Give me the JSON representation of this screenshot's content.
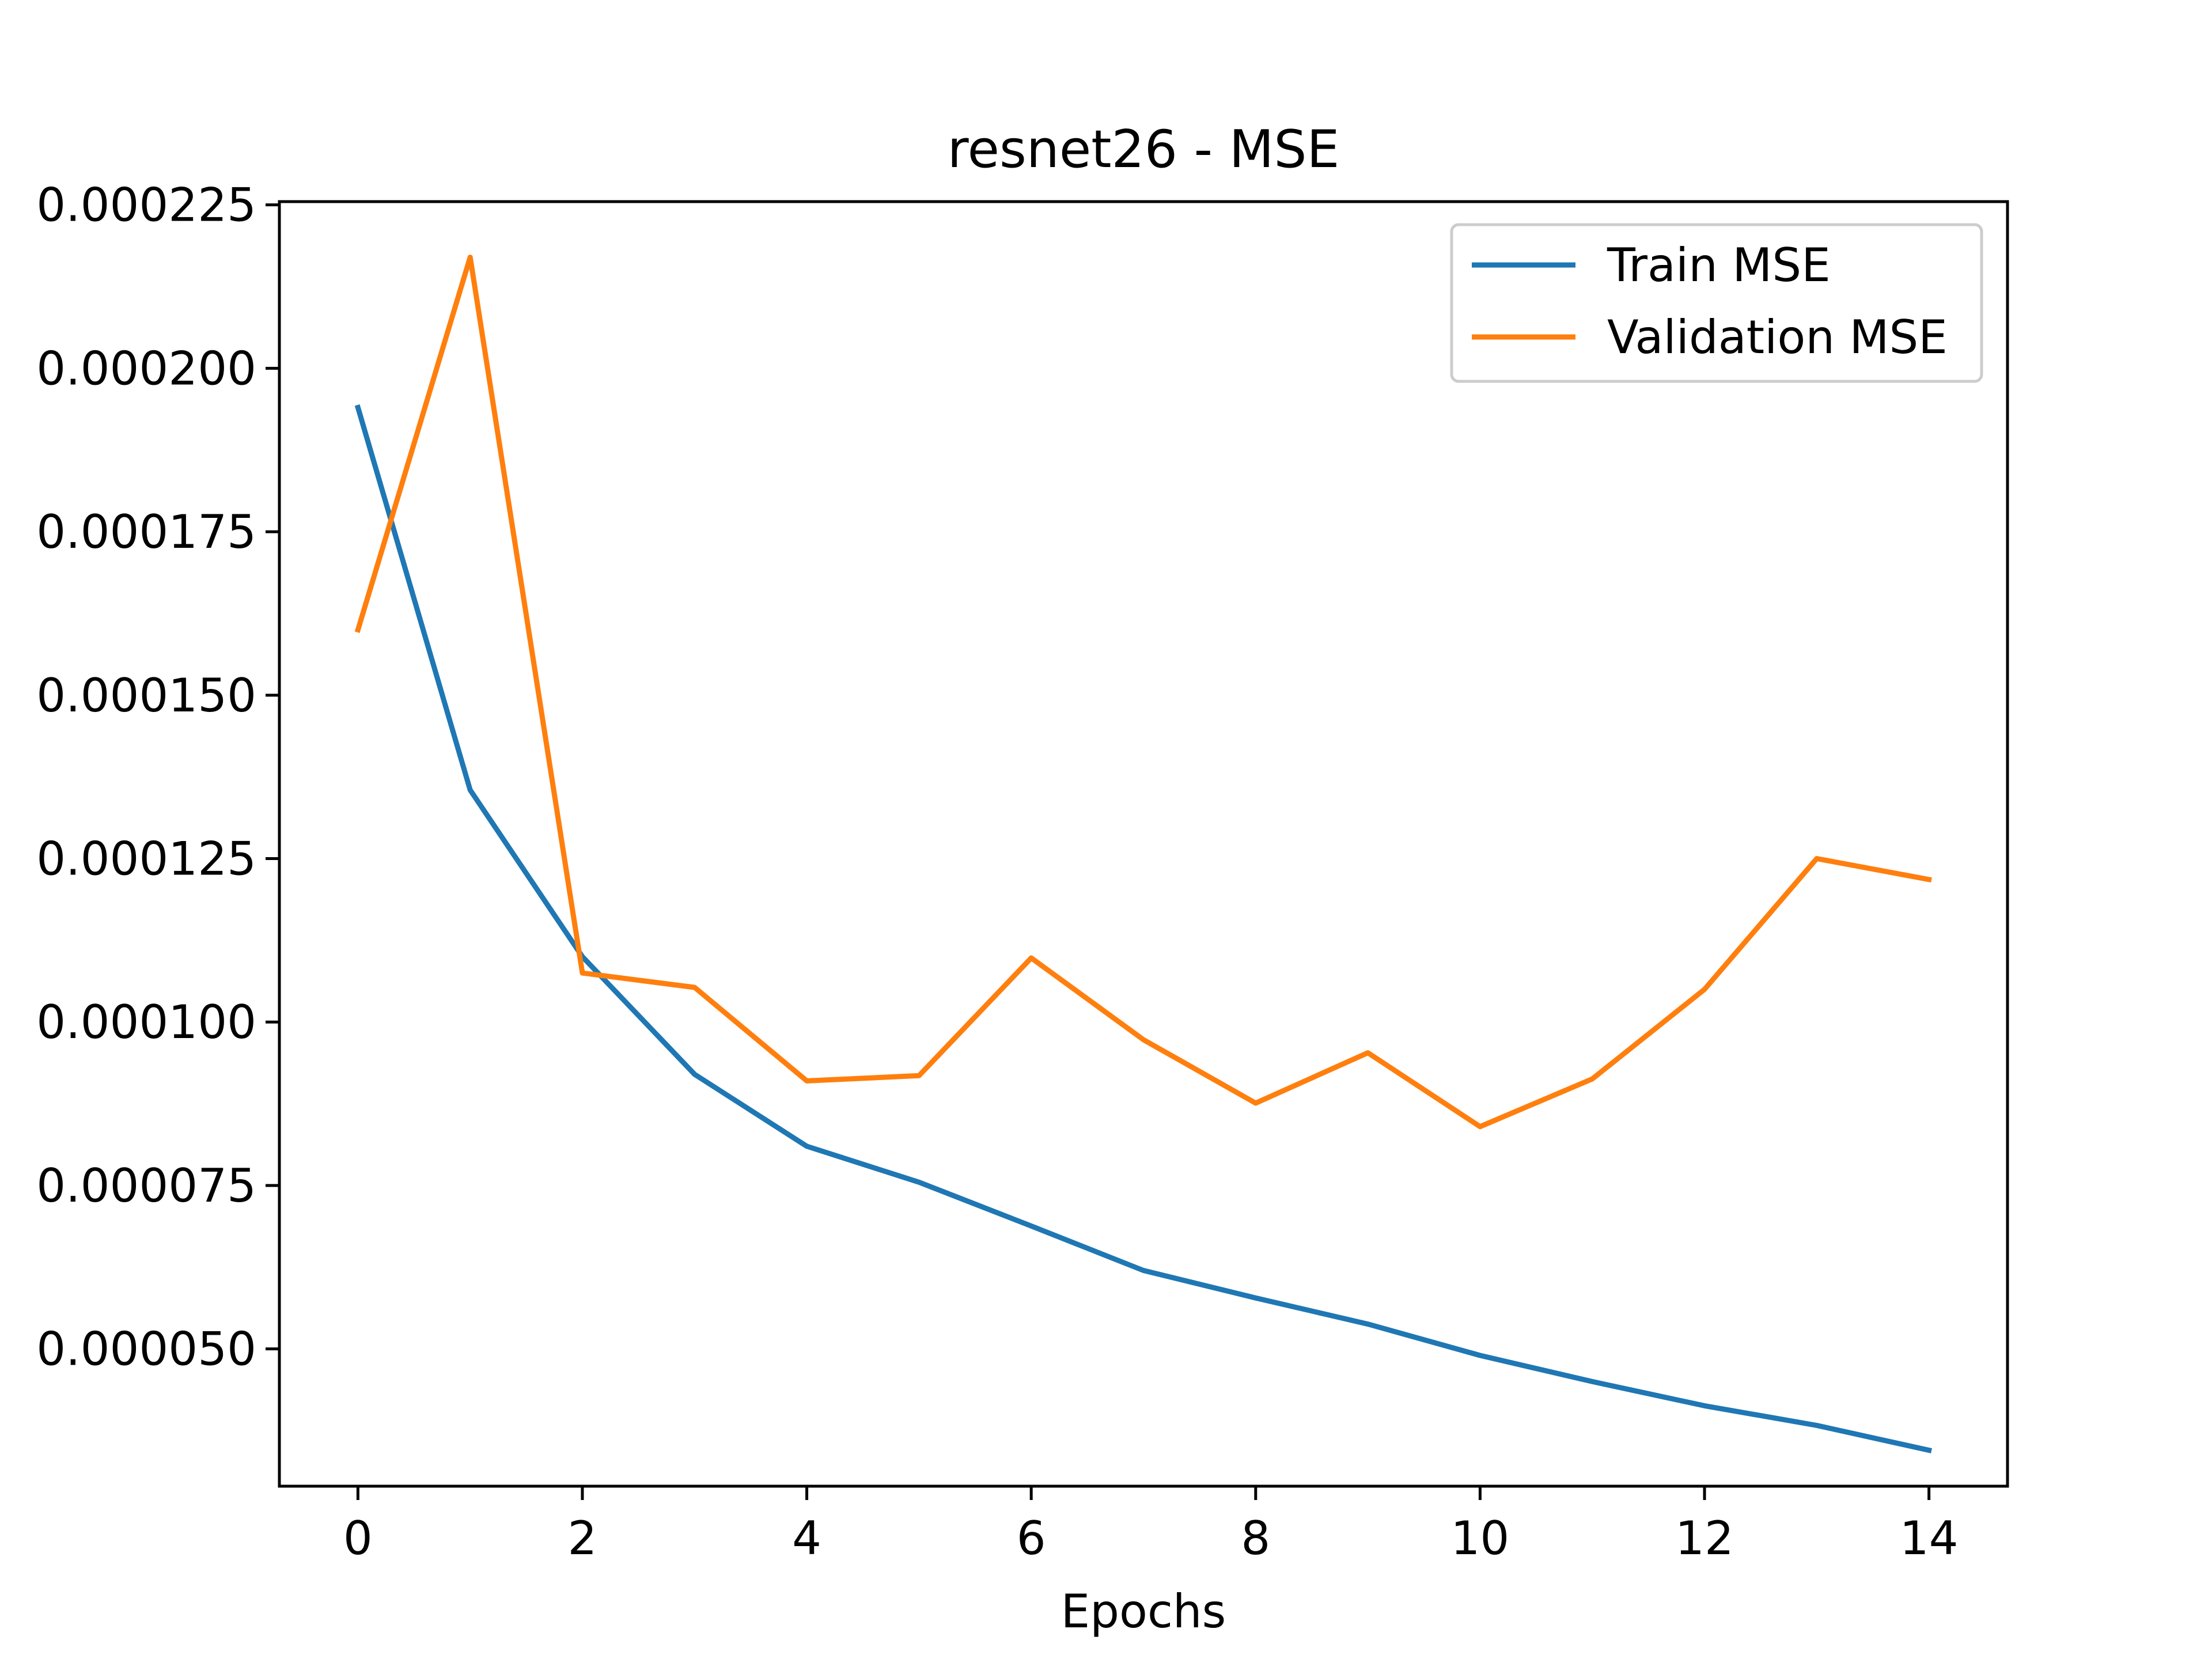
{
  "chart_data": {
    "type": "line",
    "title": "resnet26 - MSE",
    "xlabel": "Epochs",
    "ylabel": "",
    "xlim": [
      -0.7,
      14.7
    ],
    "ylim": [
      2.9e-05,
      0.0002255
    ],
    "x_ticks": [
      0,
      2,
      4,
      6,
      8,
      10,
      12,
      14
    ],
    "x_tick_labels": [
      "0",
      "2",
      "4",
      "6",
      "8",
      "10",
      "12",
      "14"
    ],
    "y_ticks": [
      5e-05,
      7.5e-05,
      0.0001,
      0.000125,
      0.00015,
      0.000175,
      0.0002,
      0.000225
    ],
    "y_tick_labels": [
      "0.000050",
      "0.000075",
      "0.000100",
      "0.000125",
      "0.000150",
      "0.000175",
      "0.000200",
      "0.000225"
    ],
    "grid": false,
    "legend_position": "top-right",
    "x": [
      0,
      1,
      2,
      3,
      4,
      5,
      6,
      7,
      8,
      9,
      10,
      11,
      12,
      13,
      14
    ],
    "series": [
      {
        "name": "Train MSE",
        "color": "#1f77b4",
        "values": [
          0.000194,
          0.0001355,
          0.00011,
          9.2e-05,
          8.1e-05,
          7.55e-05,
          6.88e-05,
          6.2e-05,
          5.78e-05,
          5.38e-05,
          4.9e-05,
          4.5e-05,
          4.13e-05,
          3.83e-05,
          3.45e-05
        ]
      },
      {
        "name": "Validation MSE",
        "color": "#ff7f0e",
        "values": [
          0.00016,
          0.000217,
          0.0001075,
          0.0001053,
          9.1e-05,
          9.18e-05,
          0.0001098,
          9.73e-05,
          8.76e-05,
          9.53e-05,
          8.4e-05,
          9.13e-05,
          0.000105,
          0.000125,
          0.0001218
        ]
      }
    ]
  }
}
